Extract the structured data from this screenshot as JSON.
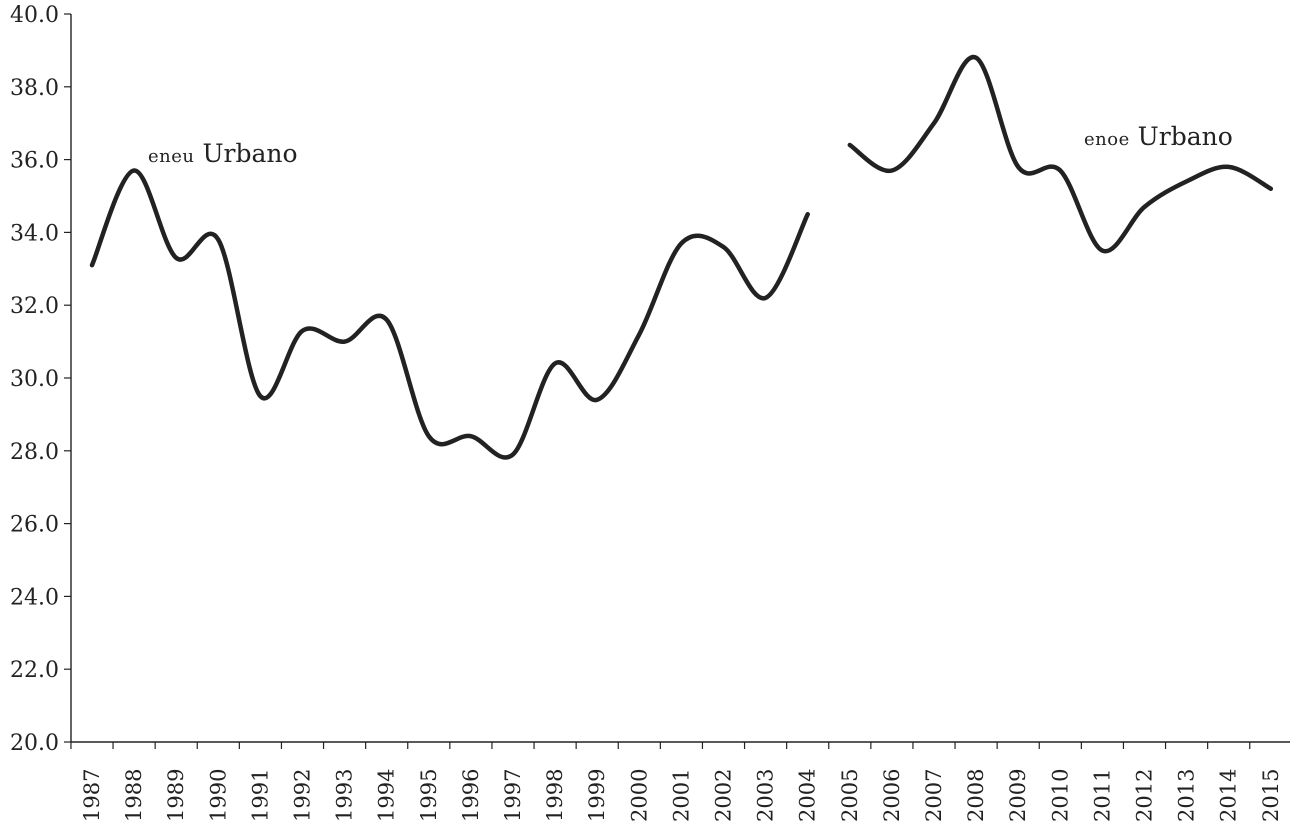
{
  "chart_data": {
    "type": "line",
    "title": "",
    "xlabel": "",
    "ylabel": "",
    "ylim": [
      20.0,
      40.0
    ],
    "yticks": [
      "20.0",
      "22.0",
      "24.0",
      "26.0",
      "28.0",
      "30.0",
      "32.0",
      "34.0",
      "36.0",
      "38.0",
      "40.0"
    ],
    "categories": [
      "1987",
      "1988",
      "1989",
      "1990",
      "1991",
      "1992",
      "1993",
      "1994",
      "1995",
      "1996",
      "1997",
      "1998",
      "1999",
      "2000",
      "2001",
      "2002",
      "2003",
      "2004",
      "2005",
      "2006",
      "2007",
      "2008",
      "2009",
      "2010",
      "2011",
      "2012",
      "2013",
      "2014",
      "2015"
    ],
    "grid": false,
    "legend": "none",
    "series": [
      {
        "name": "eneu Urbano",
        "label_prefix": "eneu",
        "label_suffix": " Urbano",
        "x": [
          "1987",
          "1988",
          "1989",
          "1990",
          "1991",
          "1992",
          "1993",
          "1994",
          "1995",
          "1996",
          "1997",
          "1998",
          "1999",
          "2000",
          "2001",
          "2002",
          "2003",
          "2004"
        ],
        "values": [
          33.1,
          35.7,
          33.3,
          33.8,
          29.5,
          31.3,
          31.0,
          31.6,
          28.4,
          28.4,
          27.9,
          30.4,
          29.4,
          31.2,
          33.7,
          33.6,
          32.2,
          34.5
        ]
      },
      {
        "name": "enoe Urbano",
        "label_prefix": "enoe",
        "label_suffix": " Urbano",
        "x": [
          "2005",
          "2006",
          "2007",
          "2008",
          "2009",
          "2010",
          "2011",
          "2012",
          "2013",
          "2014",
          "2015"
        ],
        "values": [
          36.4,
          35.7,
          37.0,
          38.8,
          35.8,
          35.7,
          33.5,
          34.7,
          35.4,
          35.8,
          35.2
        ]
      }
    ],
    "colors": {
      "line": "#222222",
      "axis": "#222222",
      "background": "#ffffff"
    }
  }
}
